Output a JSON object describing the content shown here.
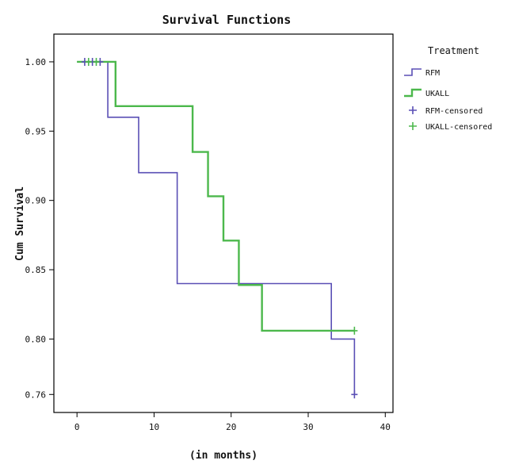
{
  "chart_data": {
    "type": "line",
    "subtype": "step",
    "title": "Survival Functions",
    "xlabel": "(in months)",
    "ylabel": "Cum Survival",
    "xlim": [
      -3,
      41
    ],
    "ylim": [
      0.747,
      1.02
    ],
    "xticks": [
      0,
      10,
      20,
      30,
      40
    ],
    "xtick_labels": [
      "0",
      "10",
      "20",
      "30",
      "40"
    ],
    "yticks": [
      0.76,
      0.8,
      0.85,
      0.9,
      0.95,
      1.0
    ],
    "ytick_labels": [
      "0.76",
      "0.80",
      "0.85",
      "0.90",
      "0.95",
      "1.00"
    ],
    "grid": false,
    "legend": {
      "title": "Treatment",
      "placement": "right",
      "entries": [
        {
          "label": "RFM",
          "kind": "line",
          "color": "#5a4fb5"
        },
        {
          "label": "UKALL",
          "kind": "line",
          "color": "#4cb84c"
        },
        {
          "label": "RFM-censored",
          "kind": "marker",
          "color": "#5a4fb5"
        },
        {
          "label": "UKALL-censored",
          "kind": "marker",
          "color": "#4cb84c"
        }
      ]
    },
    "series": [
      {
        "name": "RFM",
        "color": "#5a4fb5",
        "steps": [
          {
            "x": 0,
            "y": 1.0
          },
          {
            "x": 4,
            "y": 0.96
          },
          {
            "x": 8,
            "y": 0.92
          },
          {
            "x": 13,
            "y": 0.84
          },
          {
            "x": 33,
            "y": 0.8
          },
          {
            "x": 36,
            "y": 0.76
          }
        ],
        "end_x": 36,
        "censored": [
          {
            "x": 1,
            "y": 1.0
          },
          {
            "x": 2,
            "y": 1.0
          },
          {
            "x": 3,
            "y": 1.0
          },
          {
            "x": 36,
            "y": 0.76
          }
        ]
      },
      {
        "name": "UKALL",
        "color": "#4cb84c",
        "steps": [
          {
            "x": 0,
            "y": 1.0
          },
          {
            "x": 5,
            "y": 0.968
          },
          {
            "x": 15,
            "y": 0.935
          },
          {
            "x": 17,
            "y": 0.903
          },
          {
            "x": 19,
            "y": 0.871
          },
          {
            "x": 21,
            "y": 0.839
          },
          {
            "x": 24,
            "y": 0.806
          }
        ],
        "end_x": 36,
        "censored": [
          {
            "x": 1.5,
            "y": 1.0
          },
          {
            "x": 2.5,
            "y": 1.0
          },
          {
            "x": 36,
            "y": 0.806
          }
        ]
      }
    ]
  }
}
